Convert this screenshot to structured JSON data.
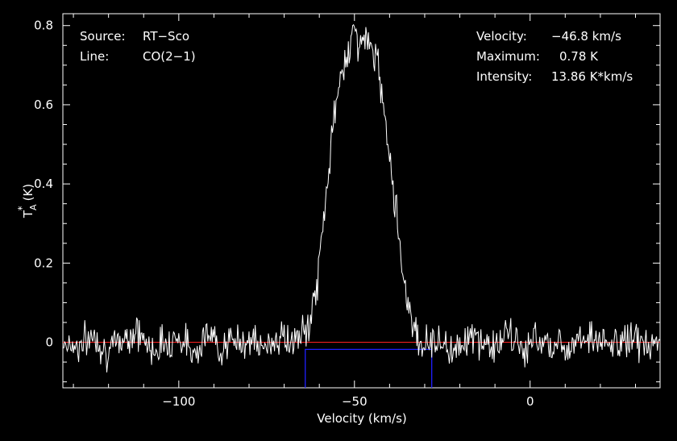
{
  "chart_data": {
    "type": "line",
    "title": "",
    "xlabel": "Velocity (km/s)",
    "ylabel_main": "T",
    "ylabel_sub": "A",
    "ylabel_sup": "*",
    "ylabel_unit": "(K)",
    "xlim": [
      -133,
      37
    ],
    "ylim": [
      -0.115,
      0.83
    ],
    "x_ticks": [
      -100,
      -50,
      0
    ],
    "x_tick_labels": [
      "−100",
      "−50",
      "0"
    ],
    "y_ticks": [
      0,
      0.2,
      0.4,
      0.6,
      0.8
    ],
    "y_tick_labels": [
      "0",
      "0.2",
      "0.4",
      "0.6",
      "0.8"
    ],
    "grid": false,
    "info_left": [
      {
        "key": "Source:",
        "value": "RT−Sco"
      },
      {
        "key": "Line:",
        "value": "CO(2−1)"
      }
    ],
    "info_right": [
      {
        "key": "Velocity:",
        "value": "−46.8 km/s"
      },
      {
        "key": "Maximum:",
        "value": "0.78 K"
      },
      {
        "key": "Intensity:",
        "value": "13.86 K*km/s"
      }
    ],
    "colors": {
      "background": "#000000",
      "spectrum": "#ffffff",
      "baseline": "#ff2020",
      "window": "#2020ff",
      "axes": "#ffffff"
    },
    "baseline": {
      "y": 0.0
    },
    "integration_window": {
      "x_start": -64,
      "x_end": -28,
      "y_level": -0.018
    },
    "series": [
      {
        "x": [
          -133,
          -128,
          -124,
          -120,
          -116,
          -112,
          -108,
          -104,
          -100,
          -96,
          -92,
          -88,
          -84,
          -80,
          -76,
          -72,
          -68,
          -66,
          -64,
          -63,
          -62,
          -61,
          -60,
          -59,
          -58,
          -57,
          -56,
          -55,
          -54,
          -53,
          -52,
          -51,
          -50,
          -49,
          -48,
          -47,
          -46,
          -45,
          -44,
          -43,
          -42,
          -41,
          -40,
          -39,
          -38,
          -37,
          -36,
          -35,
          -34,
          -33,
          -32,
          -31,
          -30,
          -28,
          -26,
          -22,
          -18,
          -14,
          -10,
          -6,
          -2,
          2,
          6,
          10,
          14,
          18,
          22,
          26,
          30,
          34,
          37
        ],
        "y": [
          0.0,
          -0.01,
          0.02,
          -0.03,
          0.01,
          0.03,
          -0.02,
          0.0,
          0.015,
          -0.025,
          0.02,
          -0.01,
          0.0,
          0.01,
          -0.02,
          0.015,
          0.0,
          0.01,
          0.02,
          0.05,
          0.08,
          0.12,
          0.2,
          0.29,
          0.38,
          0.47,
          0.55,
          0.61,
          0.66,
          0.7,
          0.74,
          0.77,
          0.78,
          0.76,
          0.77,
          0.76,
          0.75,
          0.74,
          0.72,
          0.68,
          0.62,
          0.56,
          0.48,
          0.4,
          0.32,
          0.24,
          0.17,
          0.11,
          0.07,
          0.04,
          0.02,
          0.0,
          -0.01,
          0.01,
          0.0,
          -0.02,
          0.015,
          0.0,
          -0.01,
          0.02,
          -0.02,
          0.01,
          0.0,
          -0.015,
          0.02,
          0.01,
          -0.01,
          0.0,
          0.015,
          -0.02,
          0.0
        ]
      }
    ]
  }
}
